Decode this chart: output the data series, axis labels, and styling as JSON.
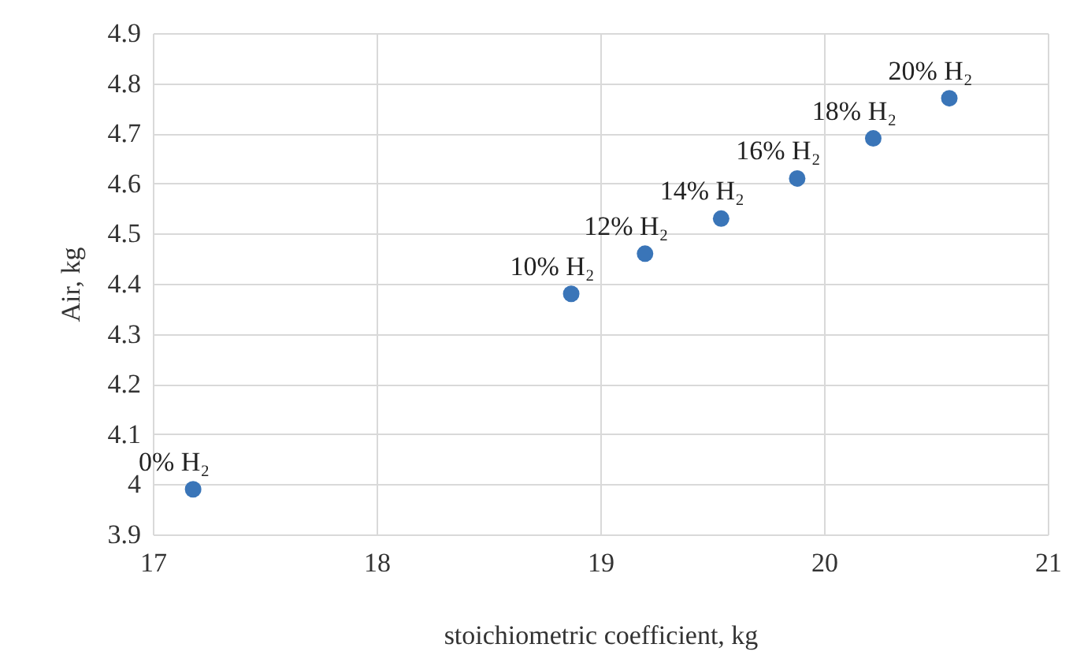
{
  "chart_data": {
    "type": "scatter",
    "xlabel": "stoichiometric coefficient, kg",
    "ylabel": "Air, kg",
    "x": [
      17.18,
      18.87,
      19.2,
      19.54,
      19.88,
      20.22,
      20.56
    ],
    "series": [
      {
        "color": "#3a75b8",
        "values": [
          3.99,
          4.38,
          4.46,
          4.53,
          4.61,
          4.69,
          4.77
        ]
      }
    ],
    "annotations": [
      {
        "text": "0% H₂",
        "x": 17.18,
        "y": 3.99
      },
      {
        "text": "10% H₂",
        "x": 18.87,
        "y": 4.38
      },
      {
        "text": "12% H₂",
        "x": 19.2,
        "y": 4.46
      },
      {
        "text": "14% H₂",
        "x": 19.54,
        "y": 4.53
      },
      {
        "text": "16% H₂",
        "x": 19.88,
        "y": 4.61
      },
      {
        "text": "18% H₂",
        "x": 20.22,
        "y": 4.69
      },
      {
        "text": "20% H₂",
        "x": 20.56,
        "y": 4.77
      }
    ],
    "xlim": [
      17,
      21
    ],
    "xticks": [
      17,
      18,
      19,
      20,
      21
    ],
    "ylim": [
      3.9,
      4.9
    ],
    "yticks": [
      3.9,
      4,
      4.1,
      4.2,
      4.3,
      4.4,
      4.5,
      4.6,
      4.7,
      4.8,
      4.9
    ],
    "grid": true,
    "marker": "circle"
  }
}
